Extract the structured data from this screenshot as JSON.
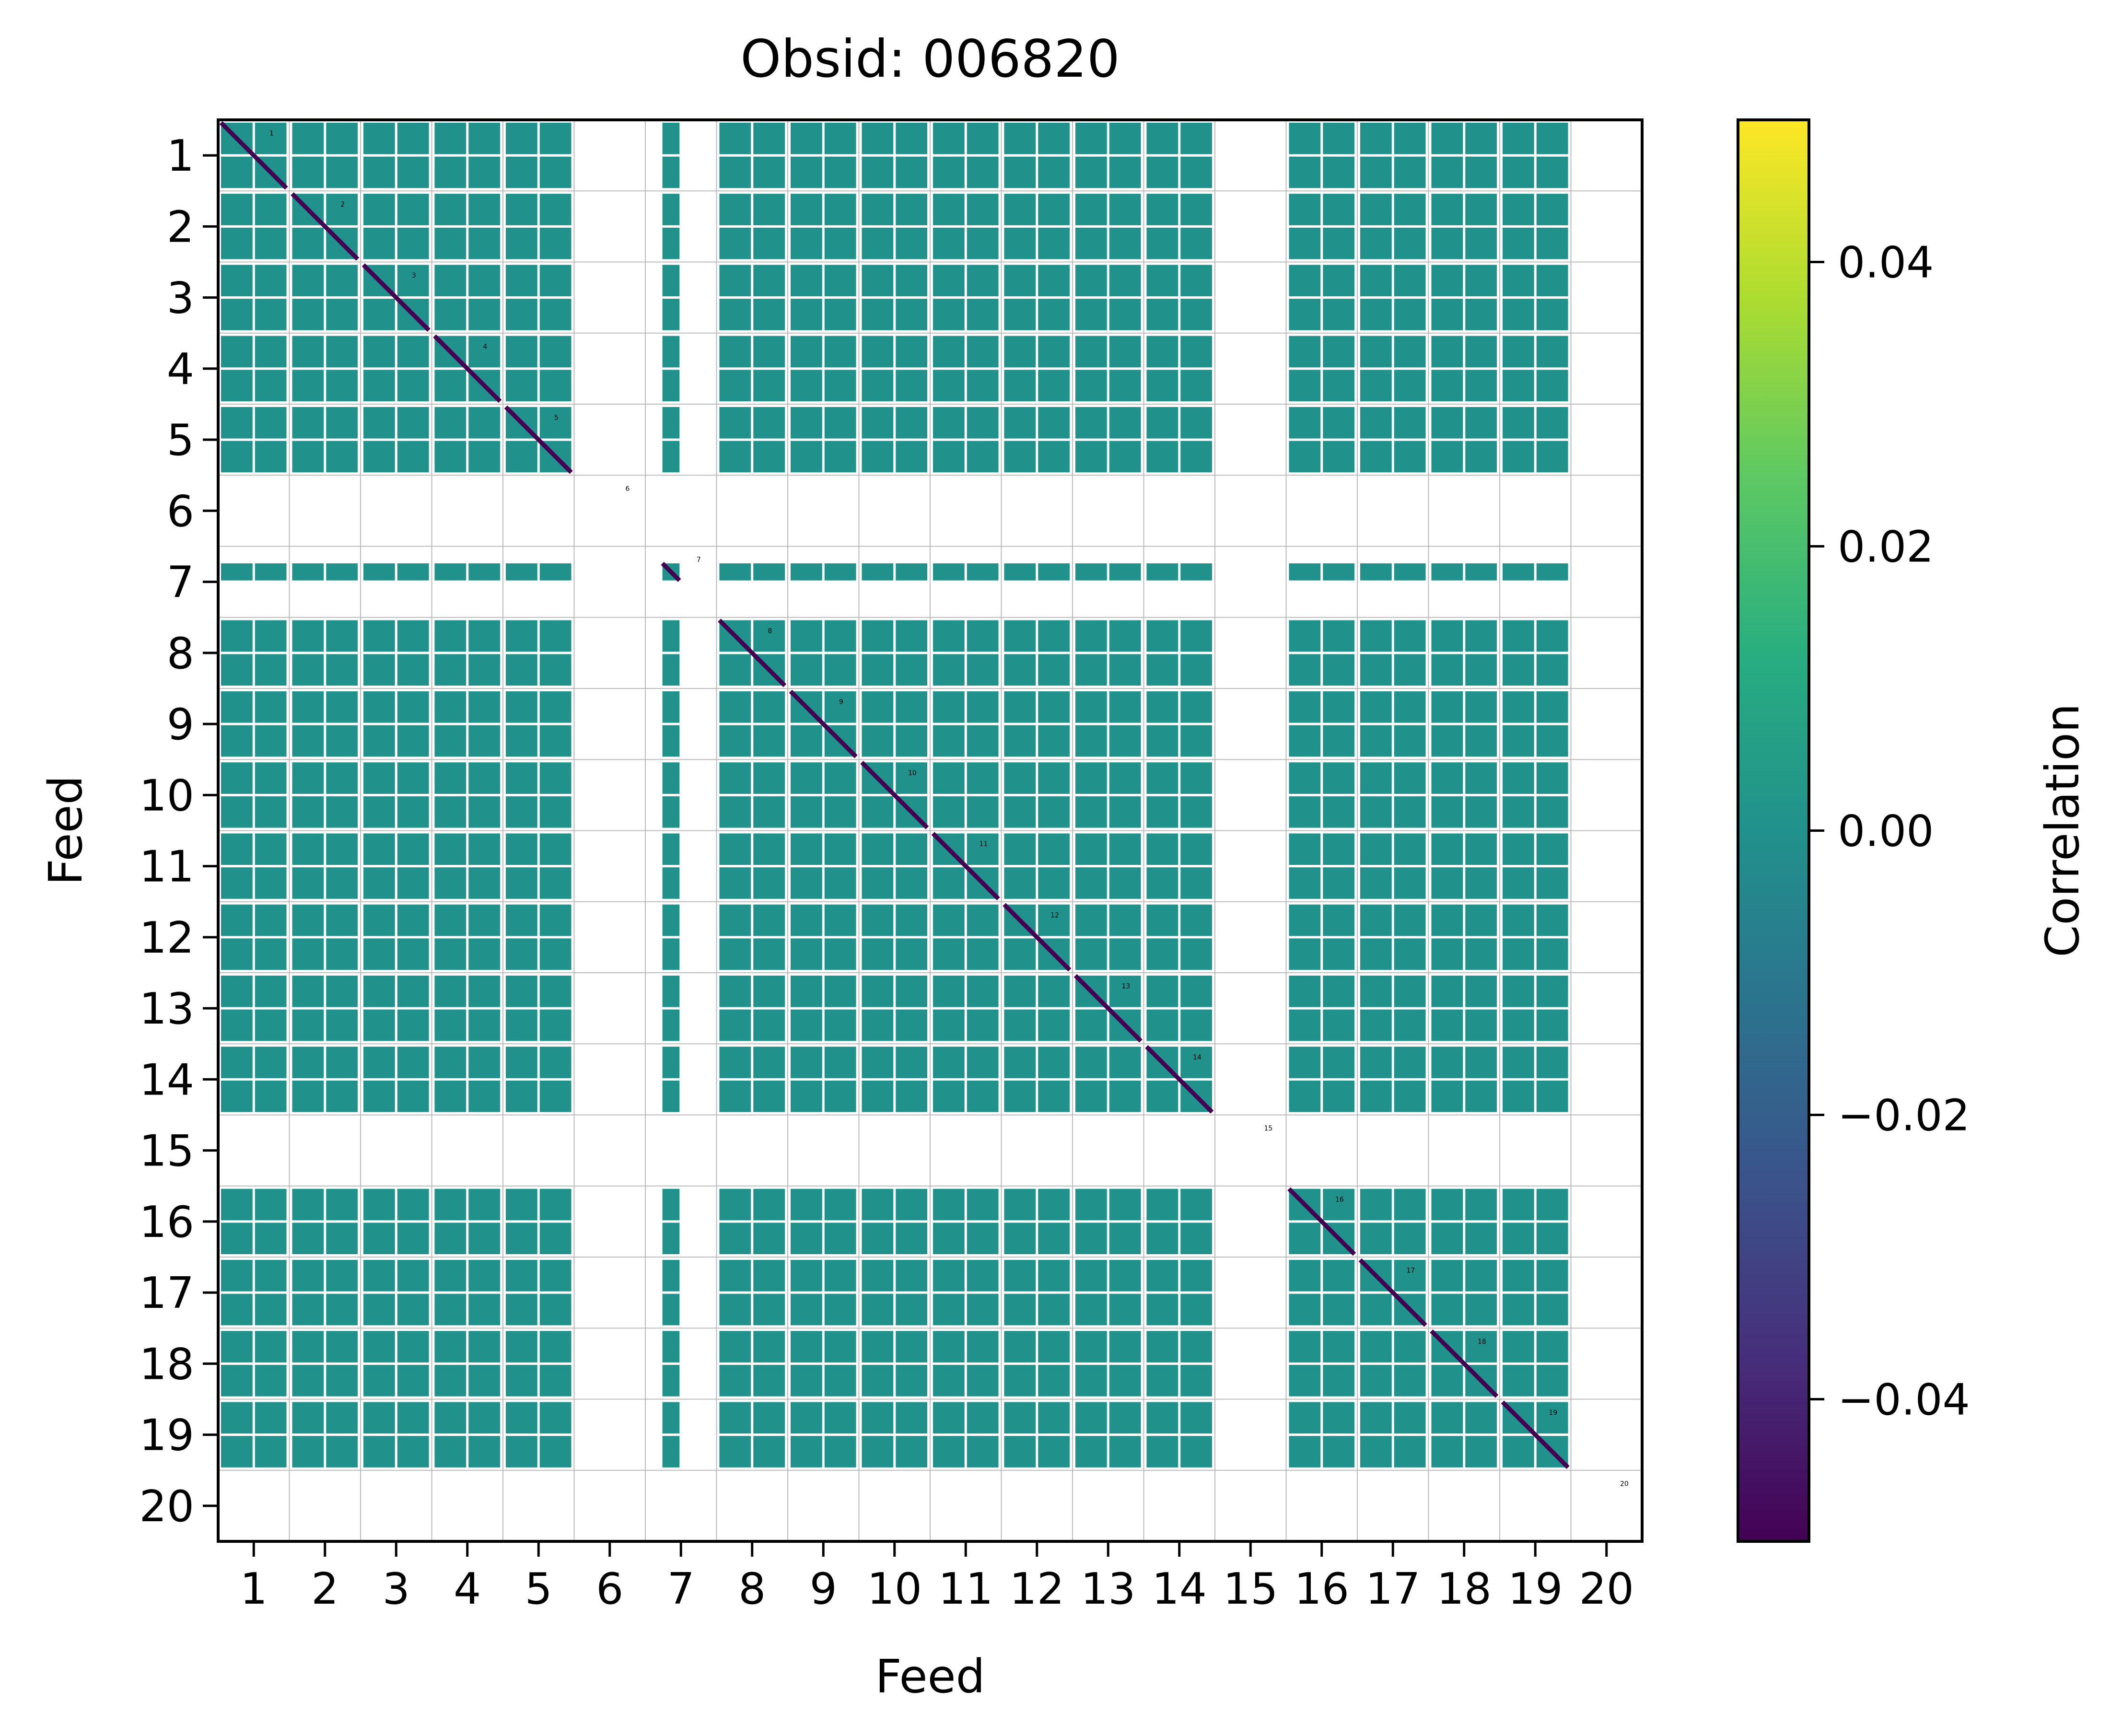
{
  "chart_data": {
    "type": "heatmap",
    "title": "Obsid: 006820",
    "xlabel": "Feed",
    "ylabel": "Feed",
    "feeds": [
      1,
      2,
      3,
      4,
      5,
      6,
      7,
      8,
      9,
      10,
      11,
      12,
      13,
      14,
      15,
      16,
      17,
      18,
      19,
      20
    ],
    "x_tick_labels": [
      "1",
      "2",
      "3",
      "4",
      "5",
      "6",
      "7",
      "8",
      "9",
      "10",
      "11",
      "12",
      "13",
      "14",
      "15",
      "16",
      "17",
      "18",
      "19",
      "20"
    ],
    "y_tick_labels": [
      "1",
      "2",
      "3",
      "4",
      "5",
      "6",
      "7",
      "8",
      "9",
      "10",
      "11",
      "12",
      "13",
      "14",
      "15",
      "16",
      "17",
      "18",
      "19",
      "20"
    ],
    "diagonal_block_labels": [
      "1",
      "2",
      "3",
      "4",
      "5",
      "6",
      "7",
      "8",
      "9",
      "10",
      "11",
      "12",
      "13",
      "14",
      "15",
      "16",
      "17",
      "18",
      "19",
      "20"
    ],
    "masked_feeds": [
      6,
      15,
      20
    ],
    "partial_feeds": [
      7
    ],
    "off_diagonal_value": 0.0,
    "diagonal_value": -0.05,
    "colorbar": {
      "label": "Correlation",
      "cmap": "viridis",
      "vmin": -0.05,
      "vmax": 0.05,
      "ticks": [
        0.04,
        0.02,
        0.0,
        -0.02,
        -0.04
      ],
      "tick_labels": [
        "0.04",
        "0.02",
        "0.00",
        "−0.02",
        "−0.04"
      ]
    },
    "colors": {
      "masked": "#ffffff",
      "zero": "#21918c",
      "diagonal": "#482878",
      "grid": "#bbbbbb"
    }
  }
}
